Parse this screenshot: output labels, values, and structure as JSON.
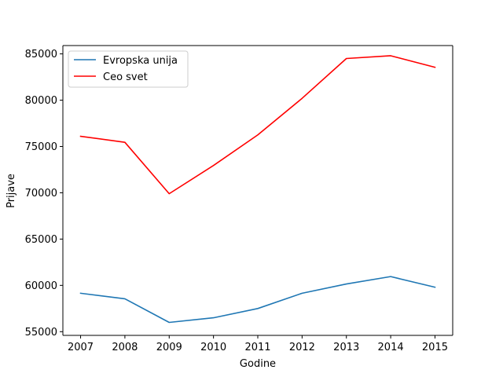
{
  "chart_data": {
    "type": "line",
    "title": "",
    "xlabel": "Godine",
    "ylabel": "Prijave",
    "x": [
      2007,
      2008,
      2009,
      2010,
      2011,
      2012,
      2013,
      2014,
      2015
    ],
    "xlim": [
      2006.6,
      2015.4
    ],
    "ylim": [
      54600,
      85900
    ],
    "xticks": [
      "2007",
      "2008",
      "2009",
      "2010",
      "2011",
      "2012",
      "2013",
      "2014",
      "2015"
    ],
    "yticks": [
      55000,
      60000,
      65000,
      70000,
      75000,
      80000,
      85000
    ],
    "ytick_labels": [
      "55000",
      "60000",
      "65000",
      "70000",
      "75000",
      "80000",
      "85000"
    ],
    "grid": false,
    "legend_position": "top-left",
    "series": [
      {
        "name": "Evropska unija",
        "color": "#1f77b4",
        "values": [
          59150,
          58550,
          56000,
          56500,
          57500,
          59150,
          60150,
          60950,
          59800
        ]
      },
      {
        "name": "Ceo svet",
        "color": "#ff0000",
        "values": [
          76100,
          75450,
          69900,
          72950,
          76250,
          80200,
          84500,
          84800,
          83550
        ]
      }
    ]
  }
}
